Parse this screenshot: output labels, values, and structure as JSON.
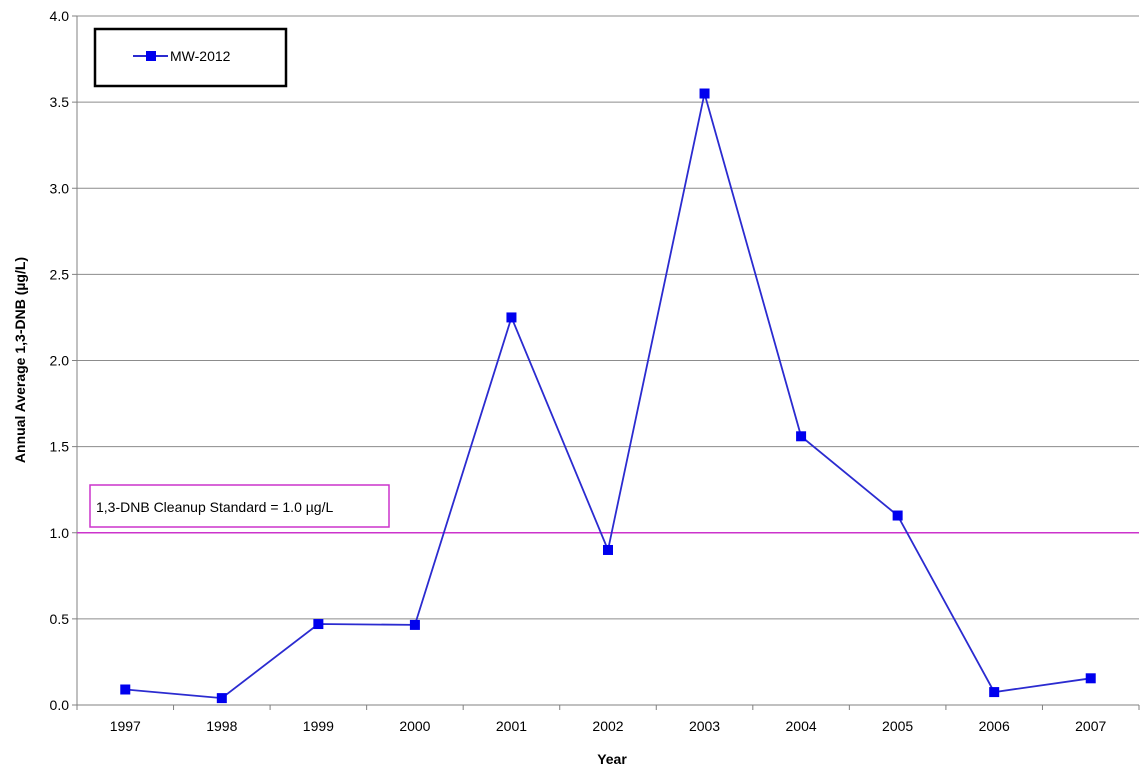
{
  "chart_data": {
    "type": "line",
    "title": "",
    "xlabel": "Year",
    "ylabel": "Annual Average 1,3-DNB (µg/L)",
    "categories": [
      "1997",
      "1998",
      "1999",
      "2000",
      "2001",
      "2002",
      "2003",
      "2004",
      "2005",
      "2006",
      "2007"
    ],
    "series": [
      {
        "name": "MW-2012",
        "values": [
          0.09,
          0.04,
          0.47,
          0.465,
          2.25,
          0.9,
          3.55,
          1.56,
          1.1,
          0.075,
          0.155
        ],
        "color": "#2B2BD0",
        "marker": "square",
        "marker_color": "#0000EE"
      }
    ],
    "ylim": [
      0,
      4
    ],
    "yticks": [
      "0.0",
      "0.5",
      "1.0",
      "1.5",
      "2.0",
      "2.5",
      "3.0",
      "3.5",
      "4.0"
    ],
    "grid": "horizontal",
    "legend_position": "top-left",
    "reference_line": {
      "value": 1.0,
      "label": "1,3-DNB Cleanup Standard = 1.0 µg/L",
      "color": "#CC33CC"
    }
  }
}
